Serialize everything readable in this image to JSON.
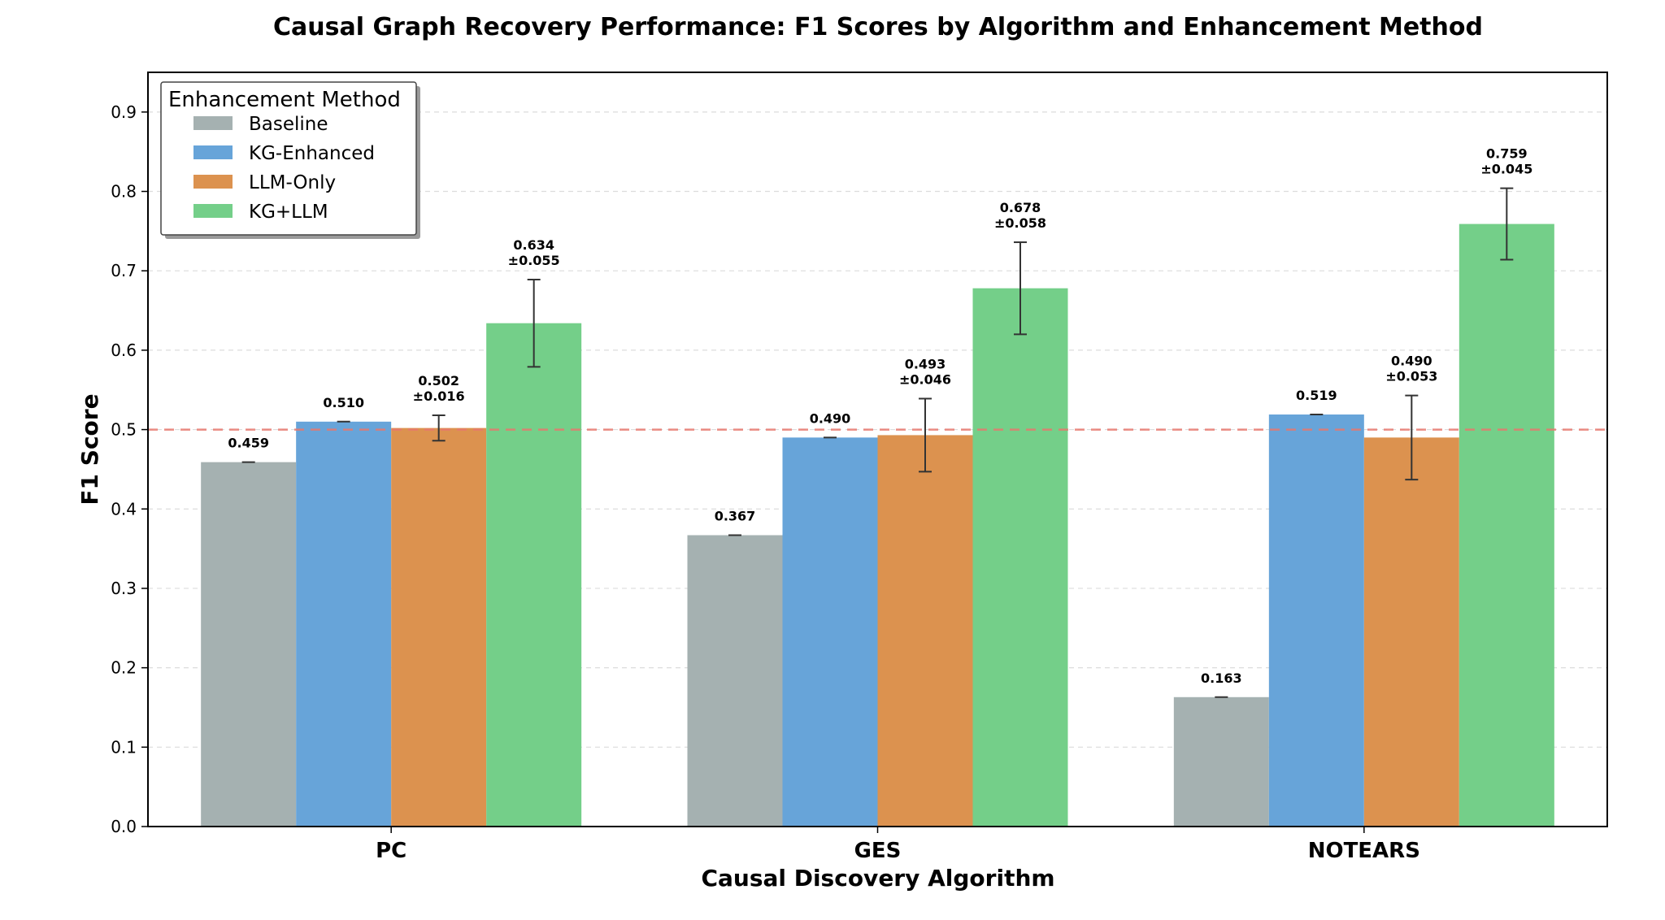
{
  "chart_data": {
    "type": "bar",
    "title": "Causal Graph Recovery Performance: F1 Scores by Algorithm and Enhancement Method",
    "xlabel": "Causal Discovery Algorithm",
    "ylabel": "F1 Score",
    "categories": [
      "PC",
      "GES",
      "NOTEARS"
    ],
    "ylim": [
      0.0,
      0.95
    ],
    "yticks": [
      0.0,
      0.1,
      0.2,
      0.3,
      0.4,
      0.5,
      0.6,
      0.7,
      0.8,
      0.9
    ],
    "ytick_labels": [
      "0.0",
      "0.1",
      "0.2",
      "0.3",
      "0.4",
      "0.5",
      "0.6",
      "0.7",
      "0.8",
      "0.9"
    ],
    "grid": true,
    "reference_line": {
      "value": 0.5,
      "color": "#e8786e",
      "style": "dashed"
    },
    "legend": {
      "title": "Enhancement Method",
      "position": "top-left"
    },
    "series": [
      {
        "name": "Baseline",
        "color": "#a5b1b1",
        "values": [
          0.459,
          0.367,
          0.163
        ],
        "errors": [
          0.0,
          0.0,
          0.0
        ],
        "labels": [
          "0.459",
          "0.367",
          "0.163"
        ]
      },
      {
        "name": "KG-Enhanced",
        "color": "#67a4d9",
        "values": [
          0.51,
          0.49,
          0.519
        ],
        "errors": [
          0.0,
          0.0,
          0.0
        ],
        "labels": [
          "0.510",
          "0.490",
          "0.519"
        ]
      },
      {
        "name": "LLM-Only",
        "color": "#dc924f",
        "values": [
          0.502,
          0.493,
          0.49
        ],
        "errors": [
          0.016,
          0.046,
          0.053
        ],
        "labels": [
          "0.502\n±0.016",
          "0.493\n±0.046",
          "0.490\n±0.053"
        ]
      },
      {
        "name": "KG+LLM",
        "color": "#74cf89",
        "values": [
          0.634,
          0.678,
          0.759
        ],
        "errors": [
          0.055,
          0.058,
          0.045
        ],
        "labels": [
          "0.634\n±0.055",
          "0.678\n±0.058",
          "0.759\n±0.045"
        ]
      }
    ]
  }
}
